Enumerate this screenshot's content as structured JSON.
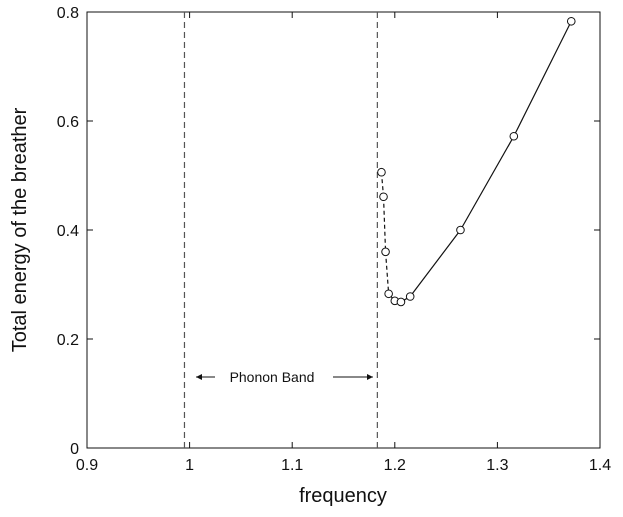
{
  "chart_data": {
    "type": "line",
    "title": "",
    "xlabel": "frequency",
    "ylabel": "Total energy of the breather",
    "xlim": [
      0.9,
      1.4
    ],
    "ylim": [
      0,
      0.8
    ],
    "x_ticks": [
      0.9,
      1.0,
      1.1,
      1.2,
      1.3,
      1.4
    ],
    "x_tick_labels": [
      "0.9",
      "1",
      "1.1",
      "1.2",
      "1.3",
      "1.4"
    ],
    "y_ticks": [
      0,
      0.2,
      0.4,
      0.6,
      0.8
    ],
    "y_tick_labels": [
      "0",
      "0.2",
      "0.4",
      "0.6",
      "0.8"
    ],
    "grid": false,
    "band_edges": [
      0.995,
      1.183
    ],
    "annotation": "Phonon Band",
    "series": [
      {
        "marker": "open-circle",
        "x": [
          1.187,
          1.189,
          1.191,
          1.194,
          1.2,
          1.206,
          1.215,
          1.264,
          1.316,
          1.372
        ],
        "y": [
          0.506,
          0.461,
          0.36,
          0.283,
          0.27,
          0.268,
          0.278,
          0.4,
          0.572,
          0.783
        ],
        "line_styles": [
          "dashed",
          "dashed",
          "dashed",
          "solid",
          "solid",
          "solid",
          "solid",
          "solid",
          "solid"
        ]
      }
    ],
    "colors": {
      "line": "#111111",
      "band_edge": "#555555"
    }
  }
}
